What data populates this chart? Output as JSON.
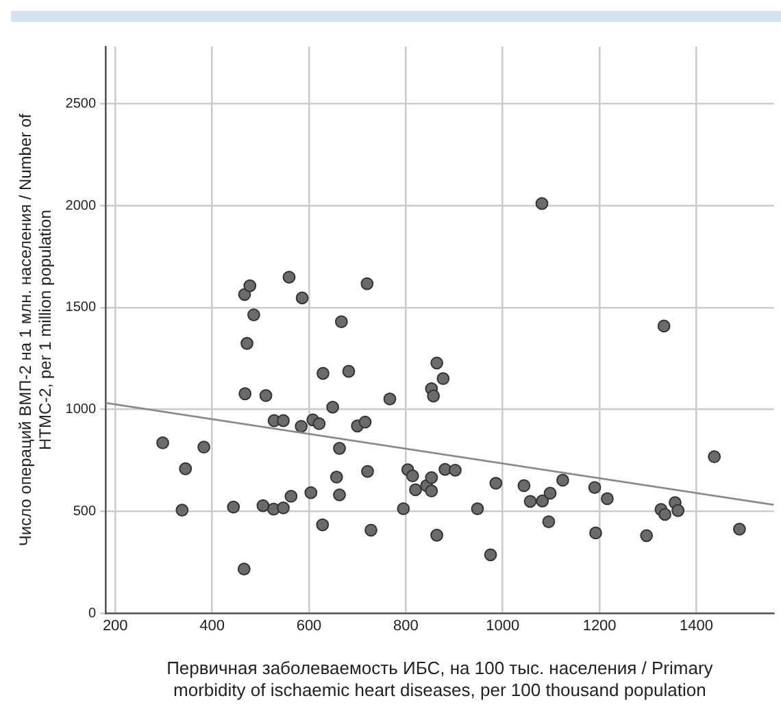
{
  "chart_data": {
    "type": "scatter",
    "xlabel": "Первичная заболеваемость ИБС, на 100 тыс. населения / Primary\nmorbidity of ischaemic heart diseases, per 100 thousand population",
    "ylabel": "Число операций ВМП-2 на 1 млн. населения / Number of\nHTMC-2, per 1 million population",
    "xlim": [
      180,
      1560
    ],
    "xticks": [
      200,
      400,
      600,
      800,
      1000,
      1200,
      1400
    ],
    "ylim": [
      0,
      2780
    ],
    "yticks": [
      0,
      500,
      1000,
      1500,
      2000,
      2500
    ],
    "grid": true,
    "legend": false,
    "marker": "circle",
    "series": [
      {
        "type": "scatter",
        "color": "#6b6b6b",
        "x": [
          298,
          383,
          345,
          338,
          444,
          466,
          468,
          472,
          467,
          478,
          486,
          559,
          586,
          511,
          505,
          527,
          547,
          563,
          528,
          547,
          584,
          604,
          608,
          621,
          628,
          629,
          649,
          663,
          657,
          663,
          667,
          682,
          720,
          700,
          716,
          721,
          728,
          767,
          795,
          804,
          814,
          820,
          843,
          853,
          853,
          864,
          853,
          857,
          864,
          877,
          881,
          902,
          948,
          975,
          986,
          1044,
          1057,
          1082,
          1098,
          1095,
          1124,
          1190,
          1192,
          1216,
          1297,
          1327,
          1335,
          1356,
          1362,
          1333,
          1437,
          1489,
          1081
        ],
        "values": [
          836,
          815,
          709,
          506,
          521,
          217,
          1077,
          1324,
          1564,
          1607,
          1464,
          1649,
          1547,
          1068,
          528,
          511,
          517,
          574,
          945,
          945,
          917,
          592,
          949,
          930,
          434,
          1177,
          1011,
          809,
          668,
          581,
          1430,
          1187,
          1617,
          919,
          938,
          696,
          408,
          1051,
          513,
          704,
          674,
          606,
          626,
          666,
          600,
          383,
          1102,
          1066,
          1228,
          1151,
          706,
          702,
          513,
          287,
          638,
          626,
          549,
          551,
          589,
          449,
          653,
          617,
          394,
          562,
          381,
          509,
          485,
          543,
          504,
          1409,
          768,
          413,
          2010
        ]
      },
      {
        "type": "line",
        "color": "#8a8a8a",
        "marker": "none",
        "line_style": "solid",
        "x": [
          180,
          1560
        ],
        "values": [
          1032,
          532
        ]
      }
    ]
  }
}
